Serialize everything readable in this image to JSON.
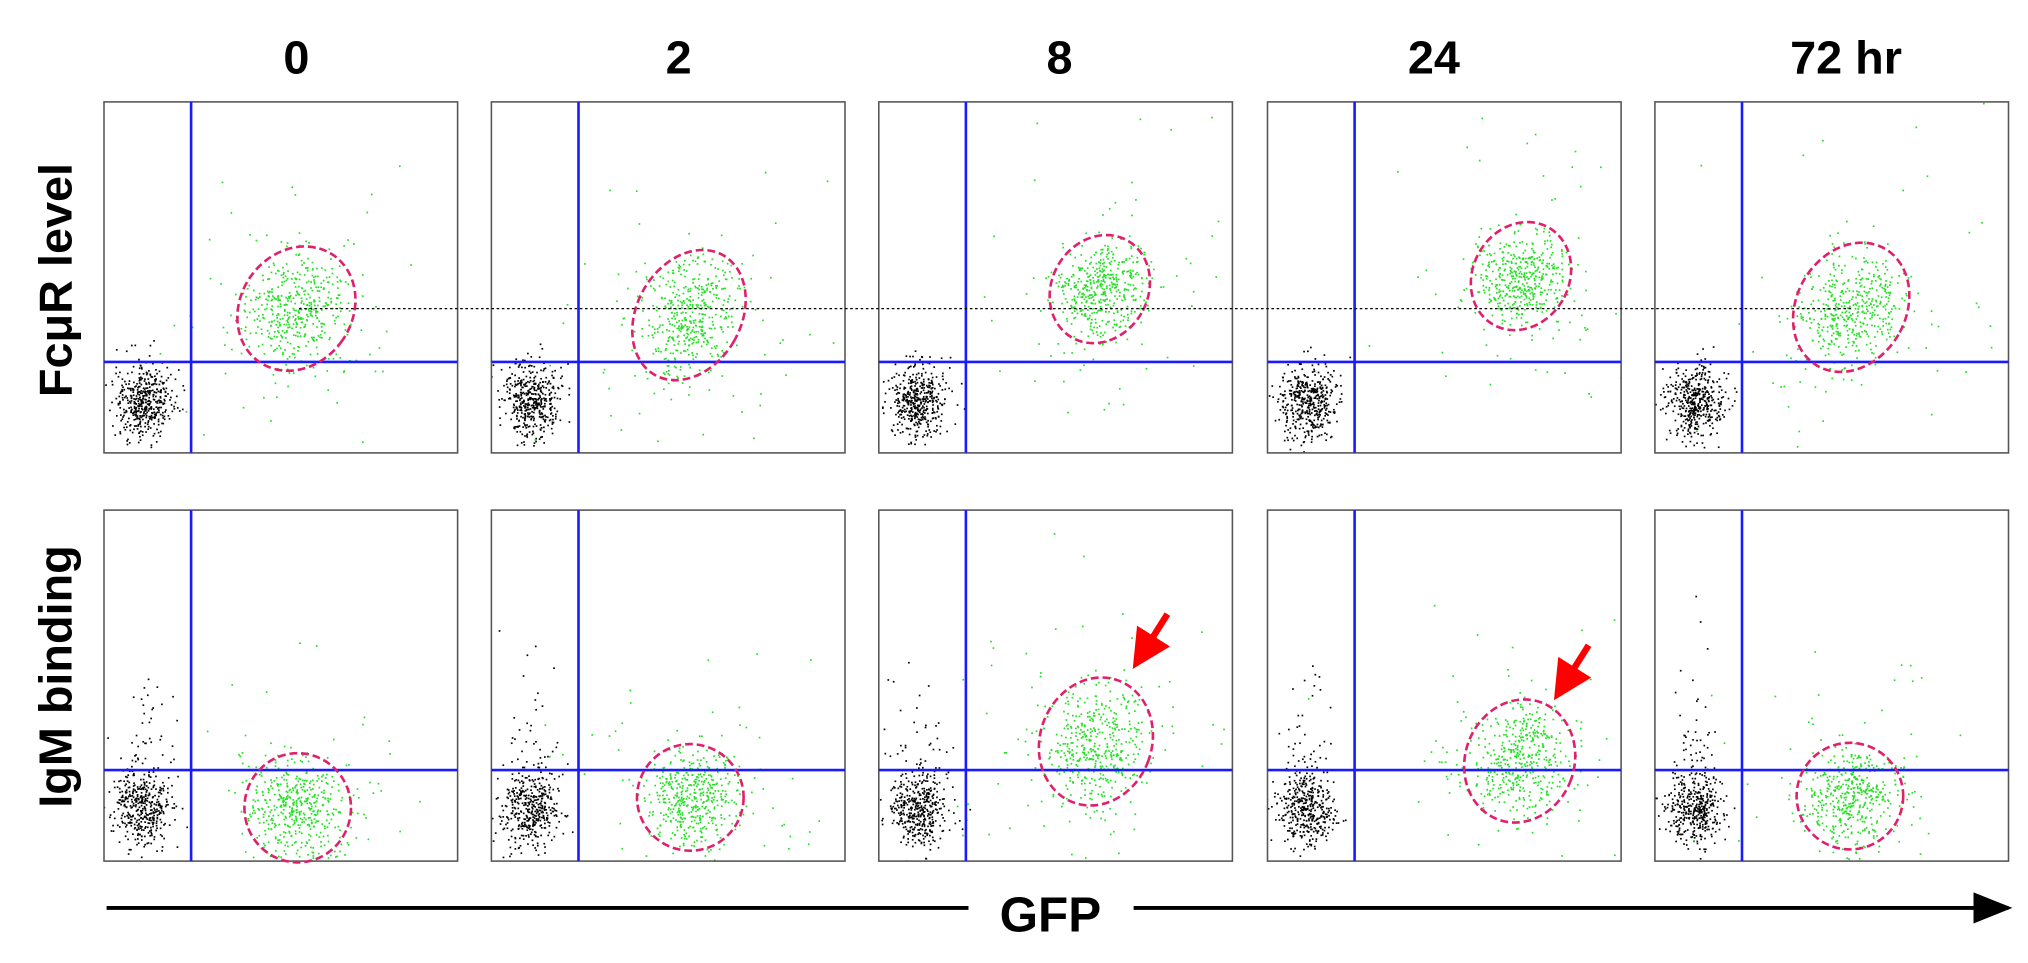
{
  "column_labels": [
    "0",
    "2",
    "8",
    "24",
    "72 hr"
  ],
  "row_labels": [
    "FcμR level",
    "IgM binding"
  ],
  "x_axis_label": "GFP"
}
